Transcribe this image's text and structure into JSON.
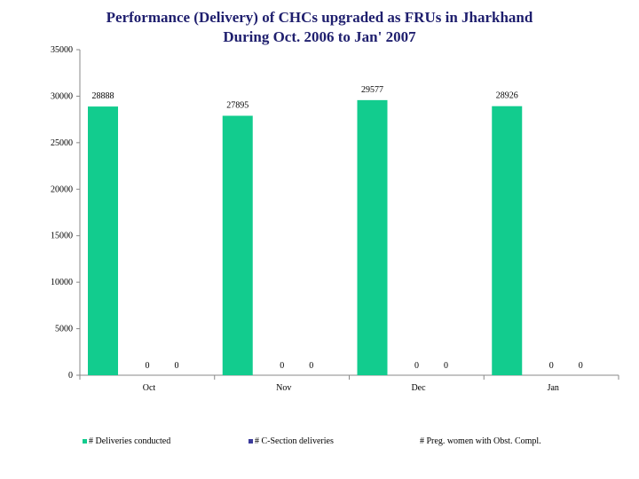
{
  "title_line1": "Performance (Delivery) of CHCs upgraded as FRUs in Jharkhand",
  "title_line2": "During Oct. 2006 to Jan' 2007",
  "chart_data": {
    "type": "bar",
    "categories": [
      "Oct",
      "Nov",
      "Dec",
      "Jan"
    ],
    "series": [
      {
        "name": "# Deliveries conducted",
        "values": [
          28888,
          27895,
          29577,
          28926
        ],
        "color": "#12cc8e"
      },
      {
        "name": "# C-Section deliveries",
        "values": [
          0,
          0,
          0,
          0
        ],
        "color": "#3b3b9c"
      },
      {
        "name": "# Preg. women with Obst. Compl.",
        "values": [
          0,
          0,
          0,
          0
        ],
        "color": "#ffffff"
      }
    ],
    "yticks": [
      0,
      5000,
      10000,
      15000,
      20000,
      25000,
      30000,
      35000
    ],
    "ylim": [
      0,
      35000
    ],
    "legend_position": "bottom"
  }
}
